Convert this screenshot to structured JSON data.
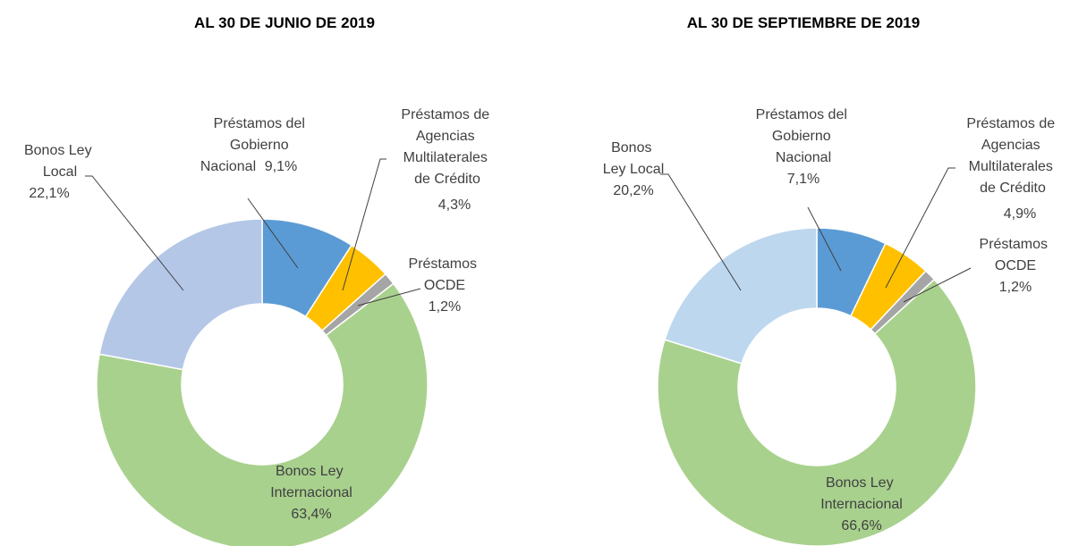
{
  "chart_data": [
    {
      "type": "donut",
      "title": "AL 30 DE JUNIO DE 2019",
      "categories": [
        "Préstamos del Gobierno Nacional",
        "Préstamos de Agencias Multilaterales de Crédito",
        "Préstamos OCDE",
        "Bonos Ley Internacional",
        "Bonos Ley Local"
      ],
      "values": [
        9.1,
        4.3,
        1.2,
        63.4,
        22.1
      ],
      "value_labels": [
        "9,1%",
        "4,3%",
        "1,2%",
        "63,4%",
        "22,1%"
      ],
      "colors": [
        "#5b9bd5",
        "#ffc000",
        "#a5a5a5",
        "#a9d18e",
        "#b4c7e7"
      ]
    },
    {
      "type": "donut",
      "title": "AL 30 DE SEPTIEMBRE DE 2019",
      "categories": [
        "Préstamos del Gobierno Nacional",
        "Préstamos de Agencias Multilaterales de Crédito",
        "Préstamos OCDE",
        "Bonos Ley Internacional",
        "Bonos Ley Local"
      ],
      "values": [
        7.1,
        4.9,
        1.2,
        66.6,
        20.2
      ],
      "value_labels": [
        "7,1%",
        "4,9%",
        "1,2%",
        "66,6%",
        "20,2%"
      ],
      "colors": [
        "#5b9bd5",
        "#ffc000",
        "#a5a5a5",
        "#a9d18e",
        "#bdd7ee"
      ]
    }
  ]
}
